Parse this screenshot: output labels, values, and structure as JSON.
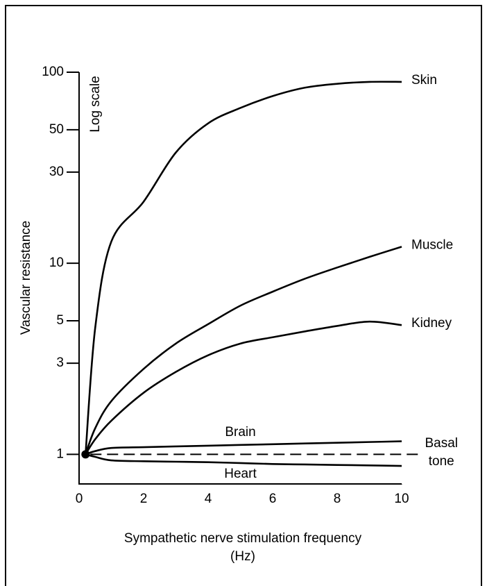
{
  "chart_data": {
    "type": "line",
    "xlabel": "Sympathetic nerve stimulation frequency (Hz)",
    "ylabel": "Vascular resistance",
    "y_scale_note": "Log scale",
    "log_y": true,
    "xlim": [
      0,
      10
    ],
    "xticks": [
      0,
      2,
      4,
      6,
      8,
      10
    ],
    "ylim": [
      0.7,
      100
    ],
    "yticks": [
      1,
      3,
      5,
      10,
      30,
      50,
      100
    ],
    "reference_line": {
      "value": 1,
      "label": "Basal tone",
      "x": [
        0.35,
        10.5
      ]
    },
    "series": [
      {
        "name": "Skin",
        "color": "#000000",
        "x": [
          0.2,
          0.5,
          1,
          2,
          3,
          4,
          5,
          6,
          7,
          8,
          9,
          10
        ],
        "values": [
          1,
          4.6,
          13,
          21,
          38,
          54,
          65,
          75,
          83,
          87,
          89,
          89
        ]
      },
      {
        "name": "Muscle",
        "color": "#000000",
        "x": [
          0.2,
          0.5,
          1,
          2,
          3,
          4,
          5,
          6,
          7,
          8,
          9,
          10
        ],
        "values": [
          1,
          1.37,
          1.9,
          2.8,
          3.8,
          4.8,
          6.0,
          7.1,
          8.3,
          9.5,
          10.8,
          12.2
        ]
      },
      {
        "name": "Kidney",
        "color": "#000000",
        "x": [
          0.2,
          0.5,
          1,
          2,
          3,
          4,
          5,
          6,
          7,
          8,
          9,
          10
        ],
        "values": [
          1,
          1.2,
          1.5,
          2.1,
          2.7,
          3.3,
          3.8,
          4.1,
          4.4,
          4.7,
          4.95,
          4.75
        ]
      },
      {
        "name": "Brain",
        "color": "#000000",
        "x": [
          0.2,
          0.5,
          1,
          2,
          3,
          4,
          5,
          6,
          7,
          8,
          9,
          10
        ],
        "values": [
          1,
          1.04,
          1.08,
          1.09,
          1.1,
          1.11,
          1.12,
          1.13,
          1.14,
          1.15,
          1.16,
          1.17
        ]
      },
      {
        "name": "Heart",
        "color": "#000000",
        "x": [
          0.2,
          0.5,
          1,
          2,
          3,
          4,
          5,
          6,
          7,
          8,
          9,
          10
        ],
        "values": [
          1,
          0.97,
          0.93,
          0.92,
          0.915,
          0.91,
          0.9,
          0.89,
          0.885,
          0.88,
          0.875,
          0.87
        ]
      }
    ]
  }
}
